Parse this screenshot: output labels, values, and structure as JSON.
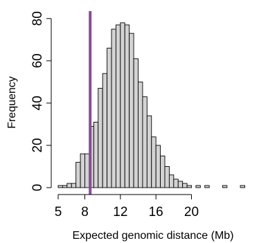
{
  "chart_data": {
    "type": "bar",
    "title": "",
    "xlabel": "Expected genomic distance (Mb)",
    "ylabel": "Frequency",
    "bin_width": 0.5,
    "bin_start": 5,
    "counts": [
      1,
      1,
      2,
      2,
      12,
      16,
      16,
      29,
      31,
      47,
      54,
      66,
      75,
      77,
      78,
      77,
      73,
      61,
      50,
      43,
      34,
      24,
      20,
      15,
      10,
      6,
      4,
      3,
      2,
      1,
      0,
      1,
      0,
      1,
      0,
      0,
      0,
      1,
      0,
      0,
      0,
      1
    ],
    "xlim": [
      5,
      26
    ],
    "ylim": [
      0,
      80
    ],
    "x_ticks": [
      5,
      8,
      12,
      16,
      20
    ],
    "x_tick_labels": [
      "5",
      "8",
      "12",
      "16",
      "20"
    ],
    "y_ticks": [
      0,
      20,
      40,
      60,
      80
    ],
    "y_tick_labels": [
      "0",
      "20",
      "40",
      "60",
      "80"
    ],
    "reference_line": {
      "x": 8.6,
      "color": "#8a4a9a"
    },
    "grid": false,
    "bar_color": "#d3d3d3"
  }
}
